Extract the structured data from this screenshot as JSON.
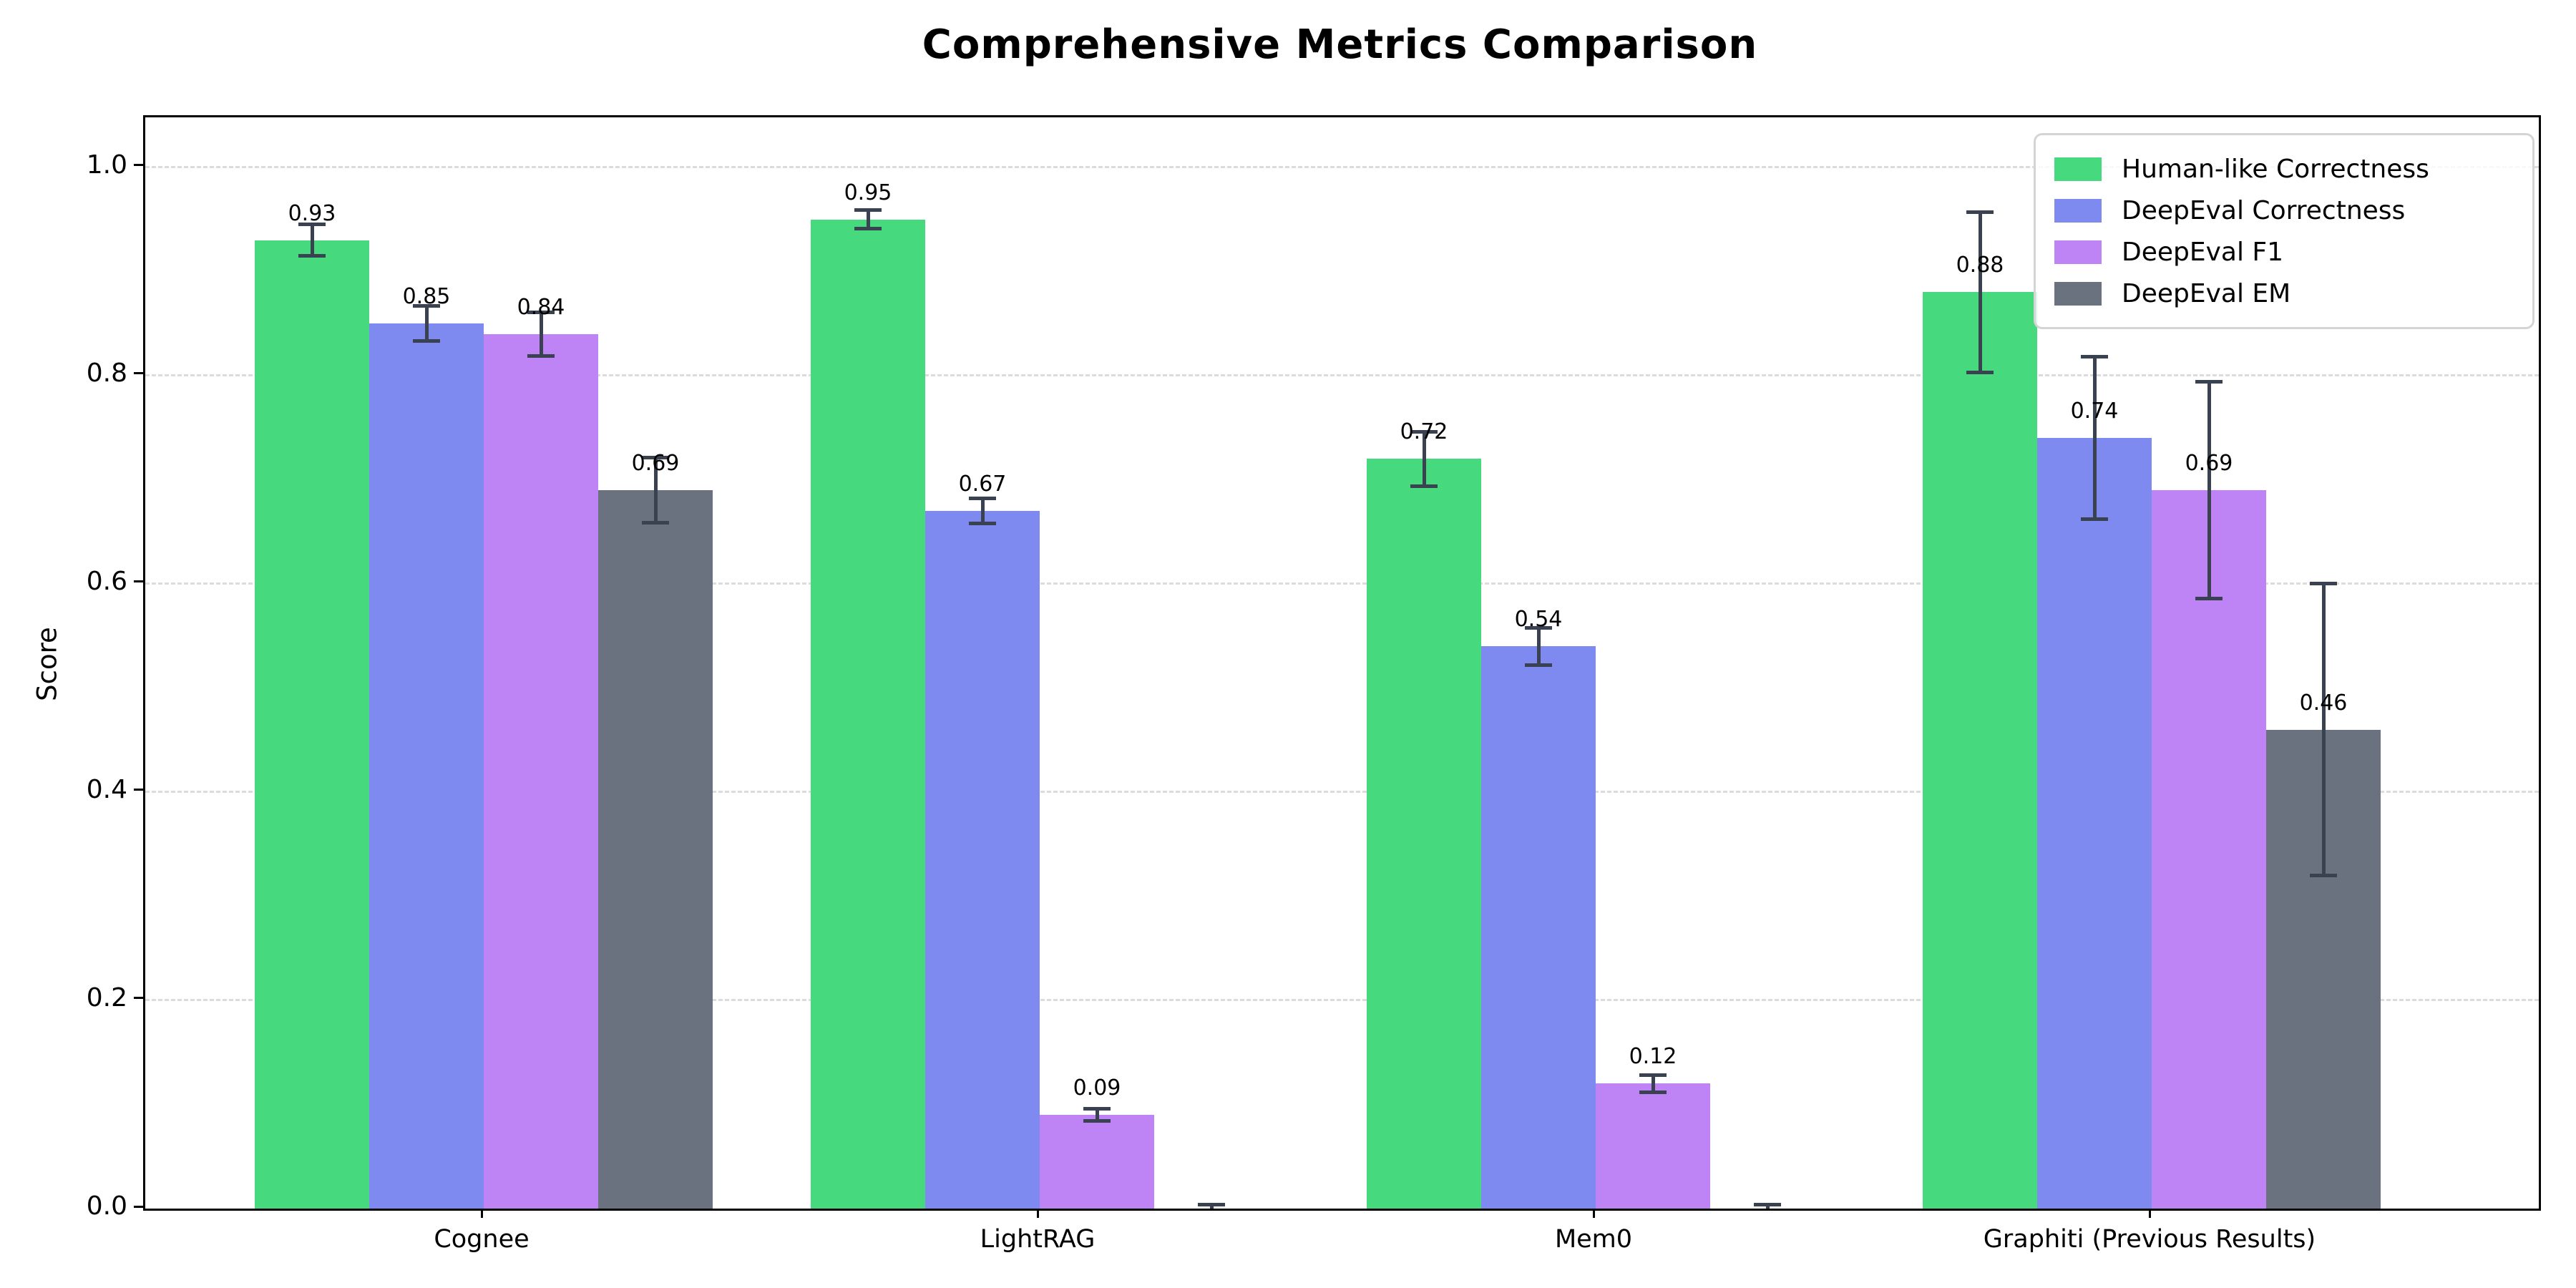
{
  "title": "Comprehensive Metrics Comparison",
  "chart_data": {
    "type": "bar",
    "title": "Comprehensive Metrics Comparison",
    "ylabel": "Score",
    "xlabel": "",
    "categories": [
      "Cognee",
      "LightRAG",
      "Mem0",
      "Graphiti (Previous Results)"
    ],
    "series": [
      {
        "name": "Human-like Correctness",
        "color": "#46d97e",
        "values": [
          0.93,
          0.95,
          0.72,
          0.88
        ],
        "errors": [
          0.015,
          0.009,
          0.026,
          0.077
        ],
        "labels": [
          "0.93",
          "0.95",
          "0.72",
          "0.88"
        ]
      },
      {
        "name": "DeepEval Correctness",
        "color": "#7f8af0",
        "values": [
          0.85,
          0.67,
          0.54,
          0.74
        ],
        "errors": [
          0.017,
          0.012,
          0.018,
          0.078
        ],
        "labels": [
          "0.85",
          "0.67",
          "0.54",
          "0.74"
        ]
      },
      {
        "name": "DeepEval F1",
        "color": "#be84f5",
        "values": [
          0.84,
          0.09,
          0.12,
          0.69
        ],
        "errors": [
          0.021,
          0.006,
          0.008,
          0.104
        ],
        "labels": [
          "0.84",
          "0.09",
          "0.12",
          "0.69"
        ]
      },
      {
        "name": "DeepEval EM",
        "color": "#6a7280",
        "values": [
          0.69,
          0.0,
          0.0,
          0.46
        ],
        "errors": [
          0.031,
          0.004,
          0.004,
          0.14
        ],
        "labels": [
          "0.69",
          "",
          "",
          "0.46"
        ]
      }
    ],
    "yticks": [
      {
        "label": "0.0",
        "value": 0.0
      },
      {
        "label": "0.2",
        "value": 0.2
      },
      {
        "label": "0.4",
        "value": 0.4
      },
      {
        "label": "0.6",
        "value": 0.6
      },
      {
        "label": "0.8",
        "value": 0.8
      },
      {
        "label": "1.0",
        "value": 1.0
      }
    ],
    "ylim": [
      0,
      1.048
    ],
    "grid": {
      "orientation": "horizontal",
      "style": "dashed",
      "color": "#dcdcdc",
      "values": [
        0.2,
        0.4,
        0.6,
        0.8,
        1.0
      ]
    },
    "legend": {
      "position": "upper right",
      "entries": [
        "Human-like Correctness",
        "DeepEval Correctness",
        "DeepEval F1",
        "DeepEval EM"
      ]
    },
    "error_bar_color": "#3a4252",
    "axis_color": "#000000"
  }
}
